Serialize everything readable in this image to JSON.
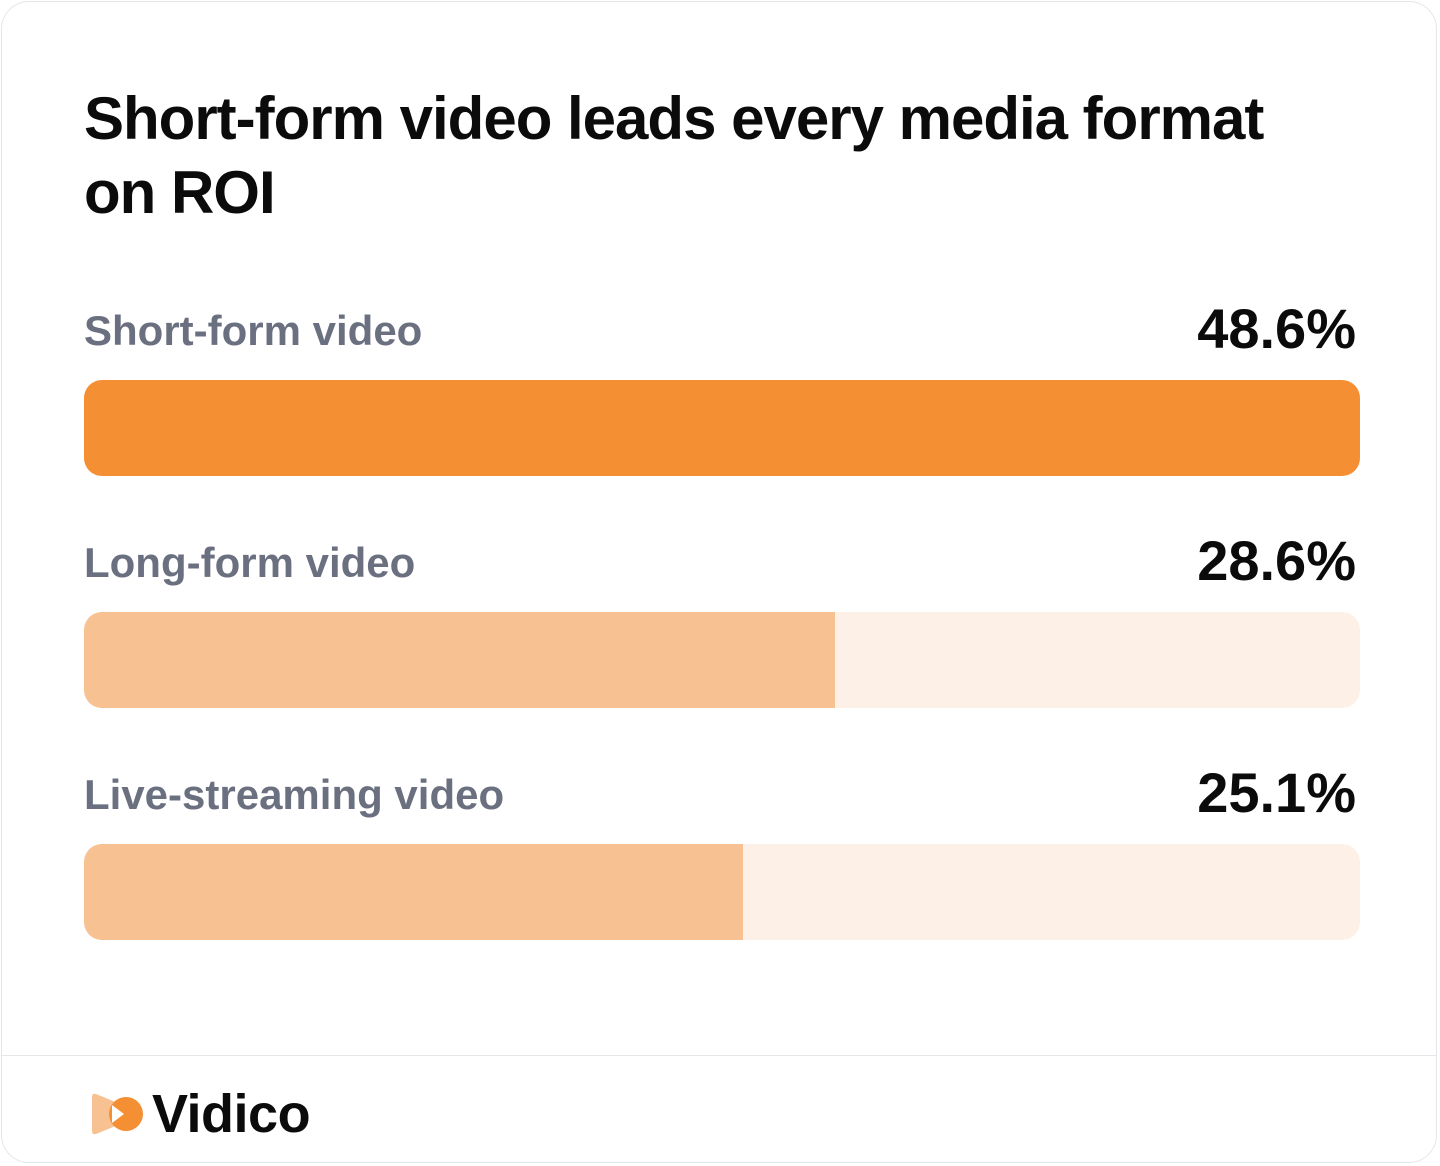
{
  "chart_data": {
    "type": "bar",
    "orientation": "horizontal",
    "title": "Short-form video leads every media format on ROI",
    "categories": [
      "Short-form video",
      "Long-form video",
      "Live-streaming video"
    ],
    "values": [
      48.6,
      28.6,
      25.1
    ],
    "value_labels": [
      "48.6%",
      "28.6%",
      "25.1%"
    ],
    "unit": "%",
    "xlim": [
      0,
      48.6
    ],
    "grid": false,
    "legend": "none",
    "colors": {
      "lead": "#f58f33",
      "bar": "#f8c191",
      "track": "#fdf0e6"
    }
  },
  "brand": {
    "name": "Vidico",
    "icon": "vidico-logo-icon"
  }
}
